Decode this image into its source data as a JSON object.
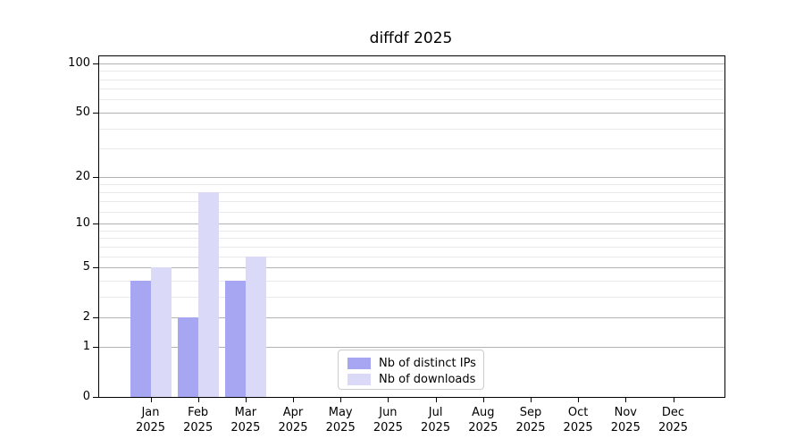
{
  "chart_data": {
    "type": "bar",
    "title": "diffdf 2025",
    "categories": [
      "Jan 2025",
      "Feb 2025",
      "Mar 2025",
      "Apr 2025",
      "May 2025",
      "Jun 2025",
      "Jul 2025",
      "Aug 2025",
      "Sep 2025",
      "Oct 2025",
      "Nov 2025",
      "Dec 2025"
    ],
    "series": [
      {
        "name": "Nb of distinct IPs",
        "color": "#a6a6f2",
        "values": [
          4,
          2,
          4,
          0,
          0,
          0,
          0,
          0,
          0,
          0,
          0,
          0
        ]
      },
      {
        "name": "Nb of downloads",
        "color": "#dadaf8",
        "values": [
          5,
          16,
          6,
          0,
          0,
          0,
          0,
          0,
          0,
          0,
          0,
          0
        ]
      }
    ],
    "yscale": "log1p",
    "ylim": [
      0,
      110
    ],
    "yticks": [
      0,
      1,
      2,
      5,
      10,
      20,
      50,
      100
    ],
    "minor_yticks": [
      3,
      4,
      6,
      7,
      8,
      9,
      12,
      14,
      16,
      18,
      30,
      40,
      60,
      70,
      80,
      90
    ],
    "grid": true,
    "legend_position": "lower center",
    "spine_color": "#000000",
    "major_grid_color": "#b2b2b2",
    "minor_grid_color": "#e9e9e9"
  }
}
